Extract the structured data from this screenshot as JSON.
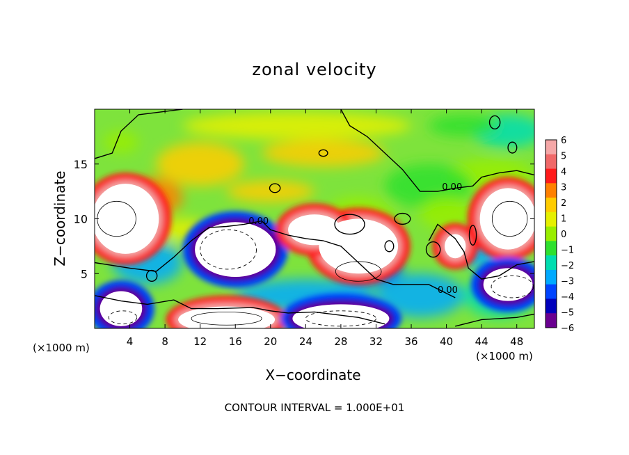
{
  "chart_data": {
    "type": "heatmap",
    "title": "zonal velocity",
    "xlabel": "X−coordinate",
    "ylabel": "Z−coordinate",
    "x_unit_label": "(×1000 m)",
    "footnote": "CONTOUR INTERVAL = 1.000E+01",
    "xlim": [
      0,
      50
    ],
    "ylim": [
      0,
      20
    ],
    "x_ticks": [
      4,
      8,
      12,
      16,
      20,
      24,
      28,
      32,
      36,
      40,
      44,
      48
    ],
    "y_ticks": [
      5,
      10,
      15
    ],
    "contour_labels": [
      "0.00",
      "0.00",
      "0.00"
    ],
    "colorbar": {
      "min": -6,
      "max": 6,
      "ticks": [
        "6",
        "5",
        "4",
        "3",
        "2",
        "1",
        "0",
        "−1",
        "−2",
        "−3",
        "−4",
        "−5",
        "−6"
      ],
      "colors": [
        "#f5a7a7",
        "#f06868",
        "#ff1a1a",
        "#ff8000",
        "#ffcc00",
        "#e6f000",
        "#99ee00",
        "#2ee02e",
        "#00ddb0",
        "#00aaff",
        "#0044ff",
        "#0000bb",
        "#6a0090"
      ]
    },
    "saturated_color": "#ffffff",
    "background_field_color": "#7ee33c",
    "grid": false
  }
}
